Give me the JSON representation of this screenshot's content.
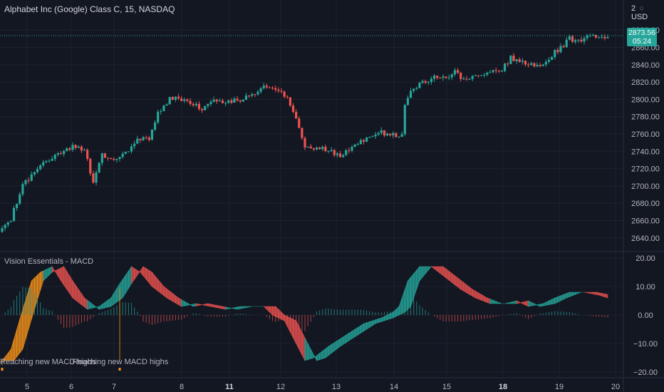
{
  "header": {
    "title": "Alphabet Inc (Google) Class C, 15, NASDAQ",
    "currency_left": "2",
    "currency": "USD",
    "currency_icon": "circle-icon"
  },
  "indicator": {
    "title": "Vision Essentials - MACD"
  },
  "last_price": {
    "value": "2873.56",
    "countdown": "05:24"
  },
  "colors": {
    "background": "#131722",
    "up": "#26a69a",
    "down": "#ef5350",
    "grid": "#1e222d",
    "highlight": "#f7931a"
  },
  "chart_data": [
    {
      "type": "candlestick",
      "title": "Alphabet Inc (Google) Class C, 15, NASDAQ",
      "xlabel": "",
      "ylabel": "",
      "ylim": [
        2625,
        2895
      ],
      "grid": true,
      "x_ticks": [
        "5",
        "6",
        "7",
        "8",
        "11",
        "12",
        "13",
        "14",
        "15",
        "18",
        "19",
        "20"
      ],
      "x_ticks_bold": [
        "11",
        "18"
      ],
      "y_ticks": [
        2640,
        2660,
        2680,
        2700,
        2720,
        2740,
        2760,
        2780,
        2800,
        2820,
        2840,
        2860,
        2880
      ],
      "close_anchors": [
        [
          0,
          2650
        ],
        [
          3,
          2662
        ],
        [
          7,
          2700
        ],
        [
          13,
          2722
        ],
        [
          19,
          2738
        ],
        [
          25,
          2746
        ],
        [
          28,
          2740
        ],
        [
          31,
          2705
        ],
        [
          34,
          2736
        ],
        [
          38,
          2730
        ],
        [
          43,
          2742
        ],
        [
          46,
          2756
        ],
        [
          50,
          2752
        ],
        [
          53,
          2785
        ],
        [
          57,
          2800
        ],
        [
          60,
          2802
        ],
        [
          64,
          2797
        ],
        [
          68,
          2790
        ],
        [
          72,
          2800
        ],
        [
          76,
          2796
        ],
        [
          81,
          2800
        ],
        [
          86,
          2806
        ],
        [
          89,
          2814
        ],
        [
          93,
          2810
        ],
        [
          97,
          2802
        ],
        [
          100,
          2780
        ],
        [
          103,
          2742
        ],
        [
          106,
          2745
        ],
        [
          110,
          2742
        ],
        [
          114,
          2735
        ],
        [
          118,
          2740
        ],
        [
          121,
          2750
        ],
        [
          125,
          2758
        ],
        [
          128,
          2762
        ],
        [
          131,
          2760
        ],
        [
          134,
          2758
        ],
        [
          136,
          2760
        ],
        [
          137,
          2795
        ],
        [
          139,
          2812
        ],
        [
          143,
          2820
        ],
        [
          148,
          2826
        ],
        [
          151,
          2824
        ],
        [
          154,
          2833
        ],
        [
          157,
          2822
        ],
        [
          161,
          2828
        ],
        [
          166,
          2830
        ],
        [
          170,
          2835
        ],
        [
          173,
          2848
        ],
        [
          177,
          2842
        ],
        [
          181,
          2838
        ],
        [
          185,
          2842
        ],
        [
          188,
          2855
        ],
        [
          191,
          2862
        ],
        [
          193,
          2870
        ],
        [
          196,
          2868
        ],
        [
          200,
          2872
        ],
        [
          204,
          2874
        ],
        [
          206,
          2872
        ]
      ],
      "last_value": 2873.56,
      "annotations": []
    },
    {
      "type": "area",
      "title": "Vision Essentials - MACD",
      "ylim": [
        -22,
        22
      ],
      "y_ticks": [
        20.0,
        10.0,
        0.0,
        -10.0,
        -20.0
      ],
      "y_tick_labels": [
        "20.00",
        "10.00",
        "0.00",
        "−10.00",
        "−20.00"
      ],
      "macd_anchors": [
        [
          0,
          -16
        ],
        [
          3,
          -12
        ],
        [
          7,
          2
        ],
        [
          10,
          12
        ],
        [
          13,
          15
        ],
        [
          17,
          17
        ],
        [
          20,
          12
        ],
        [
          24,
          6
        ],
        [
          29,
          2
        ],
        [
          33,
          3
        ],
        [
          37,
          6
        ],
        [
          40,
          11
        ],
        [
          44,
          17
        ],
        [
          47,
          15
        ],
        [
          51,
          10
        ],
        [
          56,
          6
        ],
        [
          61,
          3
        ],
        [
          66,
          4
        ],
        [
          71,
          3
        ],
        [
          76,
          2
        ],
        [
          81,
          3
        ],
        [
          86,
          3
        ],
        [
          89,
          3
        ],
        [
          92,
          0
        ],
        [
          96,
          -2
        ],
        [
          100,
          -10
        ],
        [
          103,
          -16
        ],
        [
          106,
          -15
        ],
        [
          111,
          -11
        ],
        [
          117,
          -7
        ],
        [
          123,
          -3
        ],
        [
          129,
          -1
        ],
        [
          133,
          1
        ],
        [
          135,
          3
        ],
        [
          138,
          12
        ],
        [
          142,
          17
        ],
        [
          146,
          17
        ],
        [
          151,
          13
        ],
        [
          156,
          9
        ],
        [
          161,
          6
        ],
        [
          166,
          4
        ],
        [
          171,
          4
        ],
        [
          175,
          5
        ],
        [
          179,
          3
        ],
        [
          184,
          4
        ],
        [
          188,
          6
        ],
        [
          193,
          8
        ],
        [
          198,
          8
        ],
        [
          203,
          7
        ],
        [
          206,
          6
        ]
      ],
      "signal_lag": 4,
      "annotations": [
        {
          "text": "Reaching new MACD highs",
          "x_index": 0
        },
        {
          "text": "Reaching new MACD highs",
          "x_index": 40
        }
      ]
    }
  ]
}
